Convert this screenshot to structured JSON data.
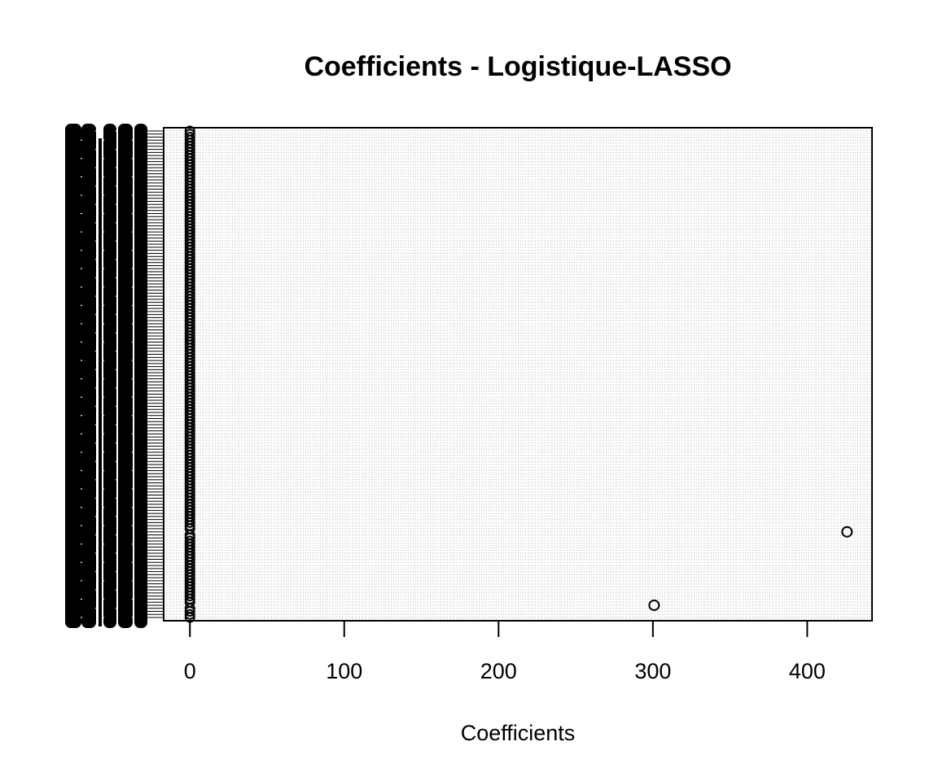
{
  "chart_data": {
    "type": "scatter",
    "title": "Coefficients -  Logistique-LASSO",
    "xlabel": "Coefficients",
    "ylabel": "",
    "xlim": [
      -17,
      442
    ],
    "x_ticks": [
      0,
      100,
      200,
      300,
      400
    ],
    "grid": true,
    "y_axis_note": "Y axis shows a dense stack of overlapping variable-name tick labels (unreadable in the original).",
    "n_coefficients": 160,
    "nonzero_points": [
      {
        "index": 28,
        "value": 425.8
      },
      {
        "index": 4,
        "value": 300.8
      }
    ],
    "all_other_values": 0
  }
}
